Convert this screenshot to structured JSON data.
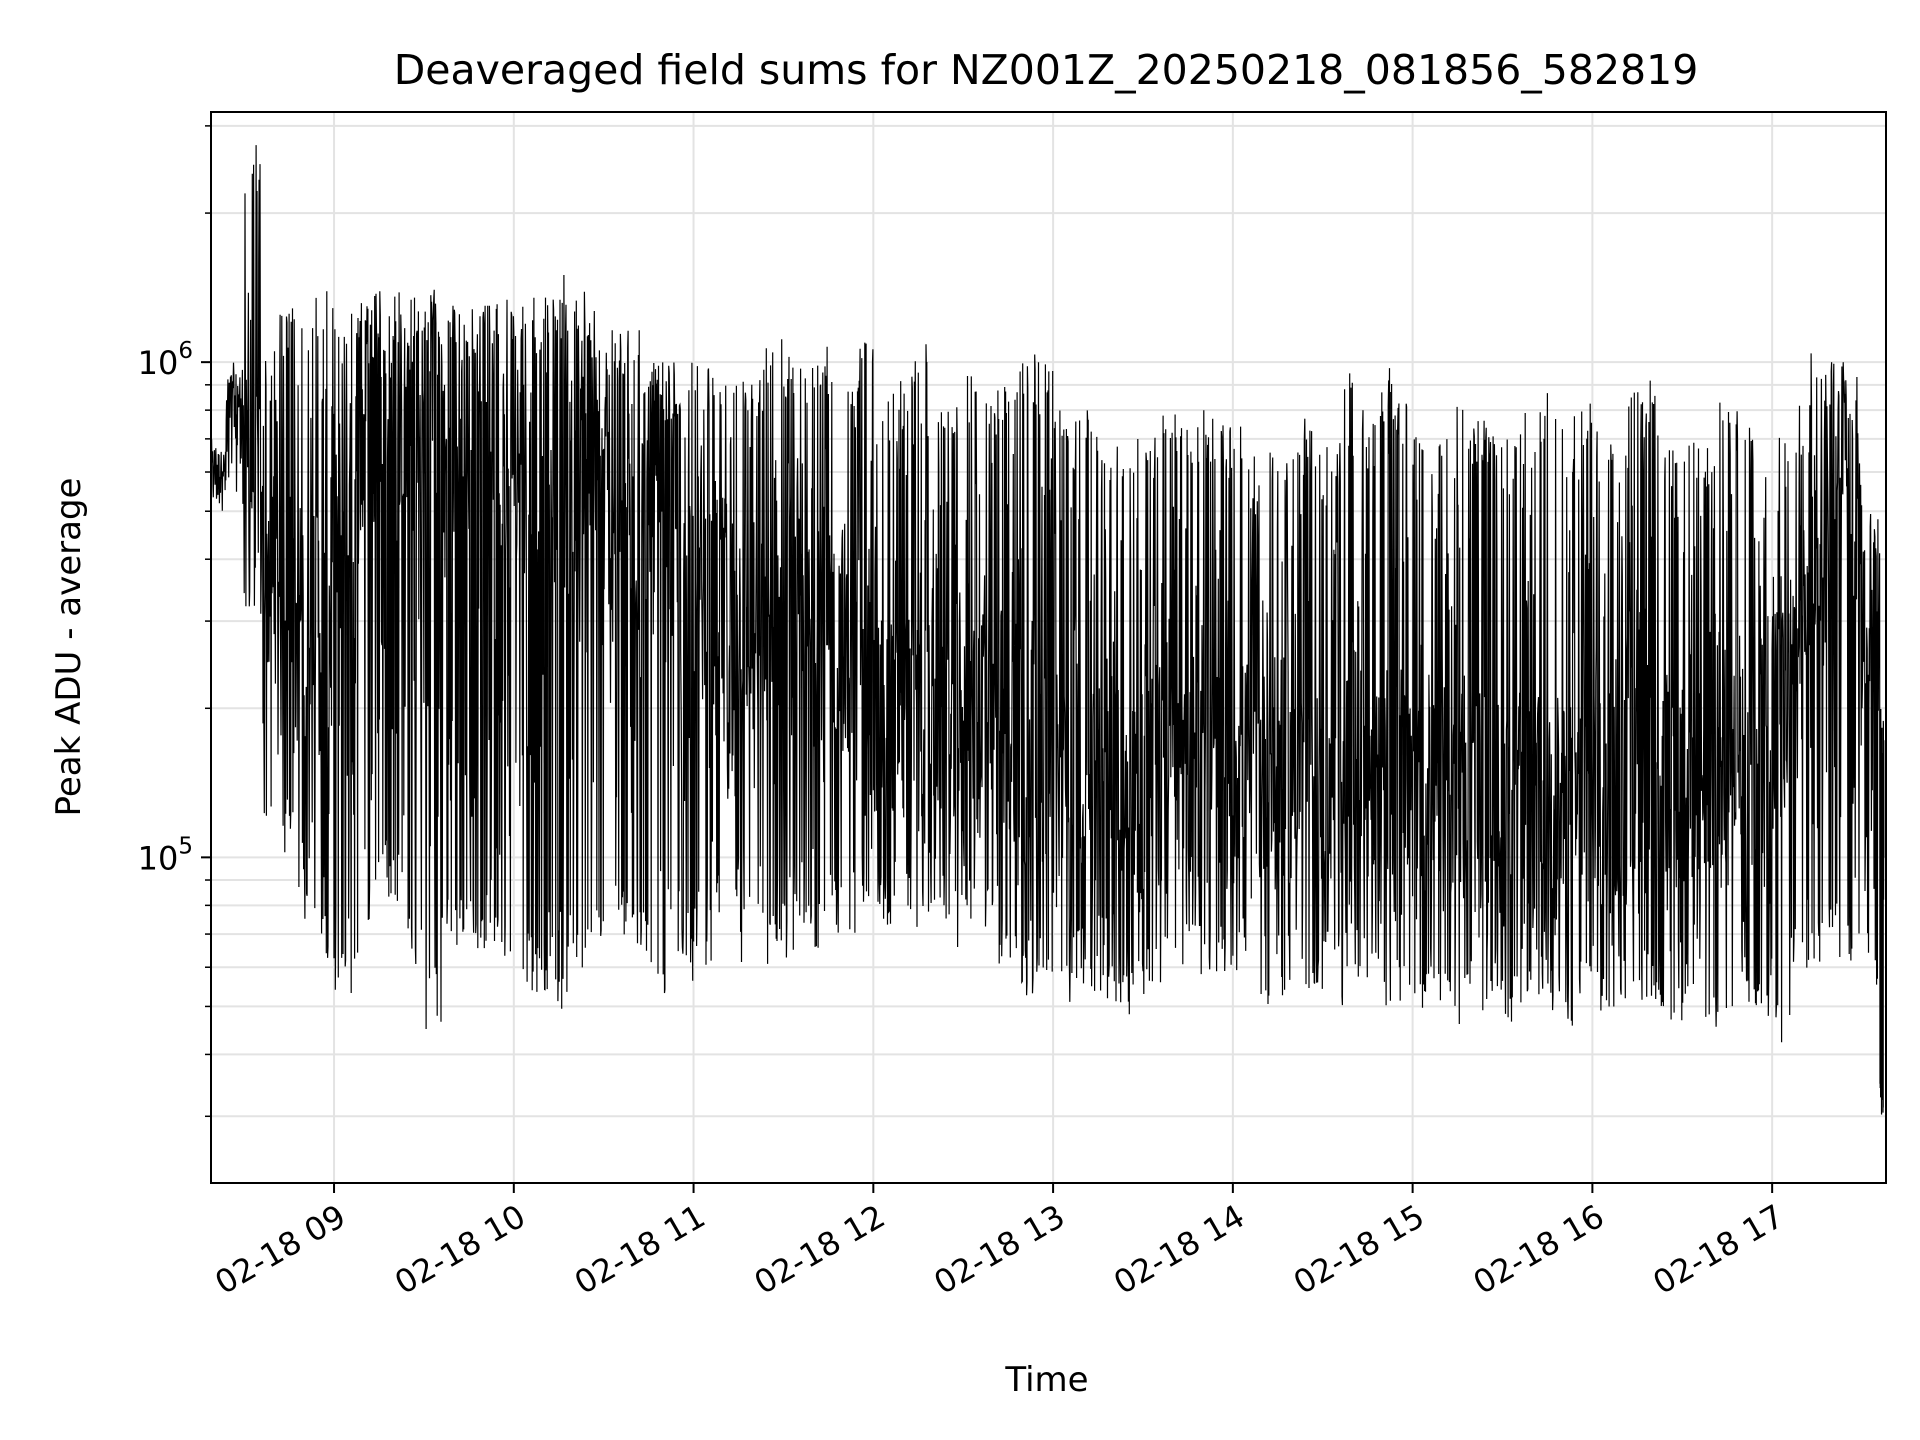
{
  "chart_data": {
    "type": "line",
    "title": "Deaveraged field sums for NZ001Z_20250218_081856_582819",
    "xlabel": "Time",
    "ylabel": "Peak ADU - average",
    "y_scale": "log",
    "ylim": [
      22000,
      3200000
    ],
    "xlim": [
      "2025-02-18 08:18:56",
      "2025-02-18 17:38:00"
    ],
    "grid": true,
    "x_tick_labels": [
      "02-18 09",
      "02-18 10",
      "02-18 11",
      "02-18 12",
      "02-18 13",
      "02-18 14",
      "02-18 15",
      "02-18 16",
      "02-18 17"
    ],
    "x_tick_times": [
      "2025-02-18 09:00",
      "2025-02-18 10:00",
      "2025-02-18 11:00",
      "2025-02-18 12:00",
      "2025-02-18 13:00",
      "2025-02-18 14:00",
      "2025-02-18 15:00",
      "2025-02-18 16:00",
      "2025-02-18 17:00"
    ],
    "y_tick_labels": [
      {
        "base": "10",
        "exp": "5",
        "value": 100000
      },
      {
        "base": "10",
        "exp": "6",
        "value": 1000000
      }
    ],
    "series": [
      {
        "color": "#000000",
        "x": [
          "2025-02-18 08:19",
          "2025-02-18 08:24",
          "2025-02-18 08:30",
          "2025-02-18 08:36",
          "2025-02-18 08:42",
          "2025-02-18 08:48",
          "2025-02-18 08:54",
          "2025-02-18 09:00",
          "2025-02-18 09:06",
          "2025-02-18 09:12",
          "2025-02-18 09:18",
          "2025-02-18 09:24",
          "2025-02-18 09:30",
          "2025-02-18 09:36",
          "2025-02-18 09:42",
          "2025-02-18 09:48",
          "2025-02-18 09:54",
          "2025-02-18 10:00",
          "2025-02-18 10:06",
          "2025-02-18 10:12",
          "2025-02-18 10:18",
          "2025-02-18 10:24",
          "2025-02-18 10:30",
          "2025-02-18 10:36",
          "2025-02-18 10:42",
          "2025-02-18 10:48",
          "2025-02-18 10:54",
          "2025-02-18 11:00",
          "2025-02-18 11:06",
          "2025-02-18 11:12",
          "2025-02-18 11:18",
          "2025-02-18 11:24",
          "2025-02-18 11:30",
          "2025-02-18 11:36",
          "2025-02-18 11:42",
          "2025-02-18 11:48",
          "2025-02-18 11:54",
          "2025-02-18 12:00",
          "2025-02-18 12:06",
          "2025-02-18 12:12",
          "2025-02-18 12:18",
          "2025-02-18 12:24",
          "2025-02-18 12:30",
          "2025-02-18 12:36",
          "2025-02-18 12:42",
          "2025-02-18 12:48",
          "2025-02-18 12:54",
          "2025-02-18 13:00",
          "2025-02-18 13:06",
          "2025-02-18 13:12",
          "2025-02-18 13:18",
          "2025-02-18 13:24",
          "2025-02-18 13:30",
          "2025-02-18 13:36",
          "2025-02-18 13:42",
          "2025-02-18 13:48",
          "2025-02-18 13:54",
          "2025-02-18 14:00",
          "2025-02-18 14:06",
          "2025-02-18 14:12",
          "2025-02-18 14:18",
          "2025-02-18 14:24",
          "2025-02-18 14:30",
          "2025-02-18 14:36",
          "2025-02-18 14:42",
          "2025-02-18 14:48",
          "2025-02-18 14:54",
          "2025-02-18 15:00",
          "2025-02-18 15:06",
          "2025-02-18 15:12",
          "2025-02-18 15:18",
          "2025-02-18 15:24",
          "2025-02-18 15:30",
          "2025-02-18 15:36",
          "2025-02-18 15:42",
          "2025-02-18 15:48",
          "2025-02-18 15:54",
          "2025-02-18 16:00",
          "2025-02-18 16:06",
          "2025-02-18 16:12",
          "2025-02-18 16:18",
          "2025-02-18 16:24",
          "2025-02-18 16:30",
          "2025-02-18 16:36",
          "2025-02-18 16:42",
          "2025-02-18 16:48",
          "2025-02-18 16:54",
          "2025-02-18 17:00",
          "2025-02-18 17:06",
          "2025-02-18 17:12",
          "2025-02-18 17:18",
          "2025-02-18 17:24",
          "2025-02-18 17:30",
          "2025-02-18 17:36"
        ],
        "y_high": [
          700000,
          1000000,
          2800000,
          1100000,
          1300000,
          1300000,
          1400000,
          1300000,
          1400000,
          1400000,
          1400000,
          1350000,
          1400000,
          1300000,
          1300000,
          1300000,
          1350000,
          1300000,
          1350000,
          1500000,
          1450000,
          1300000,
          1200000,
          1200000,
          1100000,
          1000000,
          1000000,
          1000000,
          1000000,
          1100000,
          1000000,
          1200000,
          1100000,
          1000000,
          1100000,
          1050000,
          1100000,
          900000,
          950000,
          1100000,
          800000,
          850000,
          950000,
          900000,
          1000000,
          1100000,
          1000000,
          850000,
          800000,
          750000,
          700000,
          700000,
          750000,
          800000,
          750000,
          800000,
          800000,
          750000,
          650000,
          700000,
          750000,
          800000,
          700000,
          950000,
          800000,
          1000000,
          850000,
          750000,
          700000,
          850000,
          800000,
          750000,
          700000,
          800000,
          900000,
          750000,
          850000,
          750000,
          700000,
          900000,
          950000,
          700000,
          750000,
          700000,
          850000,
          800000,
          750000,
          750000,
          850000,
          1050000,
          1000000,
          950000,
          500000,
          200000
        ],
        "y_low": [
          500000,
          500000,
          300000,
          120000,
          100000,
          75000,
          60000,
          52000,
          62000,
          90000,
          80000,
          55000,
          45000,
          65000,
          70000,
          65000,
          60000,
          55000,
          52000,
          48000,
          55000,
          65000,
          70000,
          65000,
          60000,
          50000,
          55000,
          60000,
          70000,
          60000,
          65000,
          58000,
          62000,
          65000,
          70000,
          68000,
          80000,
          70000,
          75000,
          70000,
          75000,
          65000,
          70000,
          68000,
          60000,
          50000,
          55000,
          50000,
          55000,
          52000,
          50000,
          48000,
          52000,
          55000,
          60000,
          58000,
          55000,
          55000,
          50000,
          52000,
          55000,
          52000,
          55000,
          50000,
          52000,
          48000,
          50000,
          45000,
          50000,
          45000,
          48000,
          50000,
          45000,
          50000,
          48000,
          45000,
          50000,
          45000,
          48000,
          50000,
          48000,
          45000,
          48000,
          45000,
          48000,
          50000,
          45000,
          42000,
          55000,
          60000,
          60000,
          60000,
          55000,
          30000
        ],
        "y_mid": [
          620000,
          850000,
          600000,
          350000,
          280000,
          350000,
          300000,
          450000,
          700000,
          800000,
          700000,
          800000,
          800000,
          750000,
          800000,
          850000,
          800000,
          700000,
          750000,
          700000,
          700000,
          600000,
          550000,
          500000,
          500000,
          450000,
          400000,
          350000,
          320000,
          300000,
          280000,
          300000,
          280000,
          270000,
          300000,
          280000,
          250000,
          200000,
          200000,
          180000,
          190000,
          170000,
          180000,
          200000,
          190000,
          180000,
          170000,
          130000,
          120000,
          125000,
          130000,
          140000,
          145000,
          140000,
          135000,
          140000,
          145000,
          150000,
          145000,
          150000,
          150000,
          145000,
          140000,
          150000,
          140000,
          135000,
          130000,
          130000,
          125000,
          130000,
          135000,
          130000,
          125000,
          120000,
          125000,
          120000,
          125000,
          130000,
          130000,
          140000,
          145000,
          150000,
          150000,
          160000,
          170000,
          180000,
          200000,
          220000,
          280000,
          400000,
          600000,
          550000,
          300000,
          100000
        ]
      }
    ]
  }
}
